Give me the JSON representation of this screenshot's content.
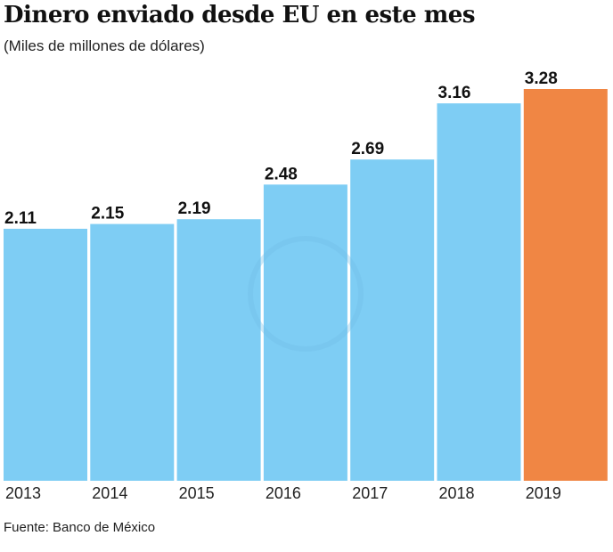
{
  "chart_data": {
    "type": "bar",
    "title": "Dinero enviado desde EU en este mes",
    "subtitle": "(Miles de millones de dólares)",
    "categories": [
      "2013",
      "2014",
      "2015",
      "2016",
      "2017",
      "2018",
      "2019"
    ],
    "values": [
      2.11,
      2.15,
      2.19,
      2.48,
      2.69,
      3.16,
      3.28
    ],
    "value_labels": [
      "2.11",
      "2.15",
      "2.19",
      "2.48",
      "2.69",
      "3.16",
      "3.28"
    ],
    "xlabel": "",
    "ylabel": "",
    "ylim": [
      0,
      3.28
    ],
    "grid": false,
    "colors": {
      "default": "#7ECDF4",
      "highlight": "#F08644"
    },
    "highlight_category": "2019",
    "source": "Fuente: Banco de México"
  }
}
